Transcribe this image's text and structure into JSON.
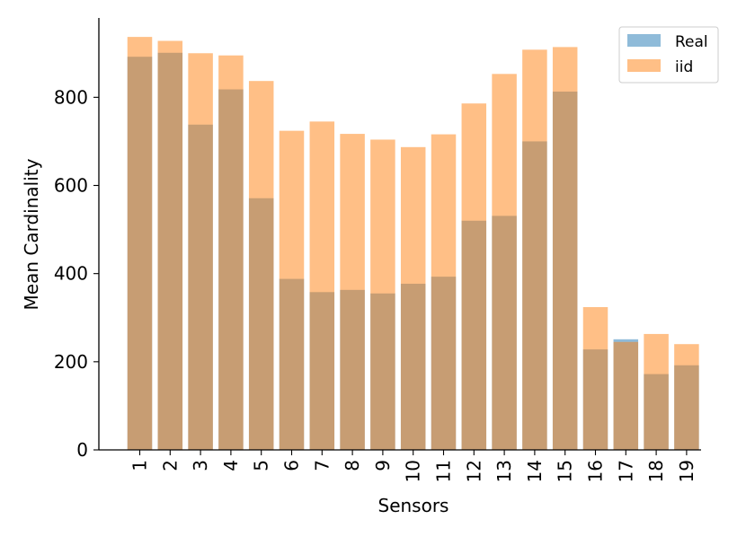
{
  "chart_data": {
    "type": "bar",
    "categories": [
      "1",
      "2",
      "3",
      "4",
      "5",
      "6",
      "7",
      "8",
      "9",
      "10",
      "11",
      "12",
      "13",
      "14",
      "15",
      "16",
      "17",
      "18",
      "19"
    ],
    "series": [
      {
        "name": "Real",
        "color": "#1f77b4",
        "opacity": 0.5,
        "values": [
          892,
          901,
          738,
          818,
          571,
          388,
          358,
          363,
          355,
          377,
          393,
          520,
          531,
          700,
          813,
          228,
          251,
          172,
          192
        ]
      },
      {
        "name": "iid",
        "color": "#ff7f0e",
        "opacity": 0.5,
        "values": [
          937,
          928,
          900,
          895,
          837,
          724,
          745,
          717,
          704,
          687,
          716,
          786,
          853,
          908,
          914,
          324,
          245,
          263,
          240
        ]
      }
    ],
    "xlabel": "Sensors",
    "ylabel": "Mean Cardinality",
    "ylim": [
      0,
      980
    ],
    "yticks": [
      0,
      200,
      400,
      600,
      800
    ],
    "ytick_labels": [
      "0",
      "200",
      "400",
      "600",
      "800"
    ],
    "legend_position": "top-right",
    "grid": false
  }
}
